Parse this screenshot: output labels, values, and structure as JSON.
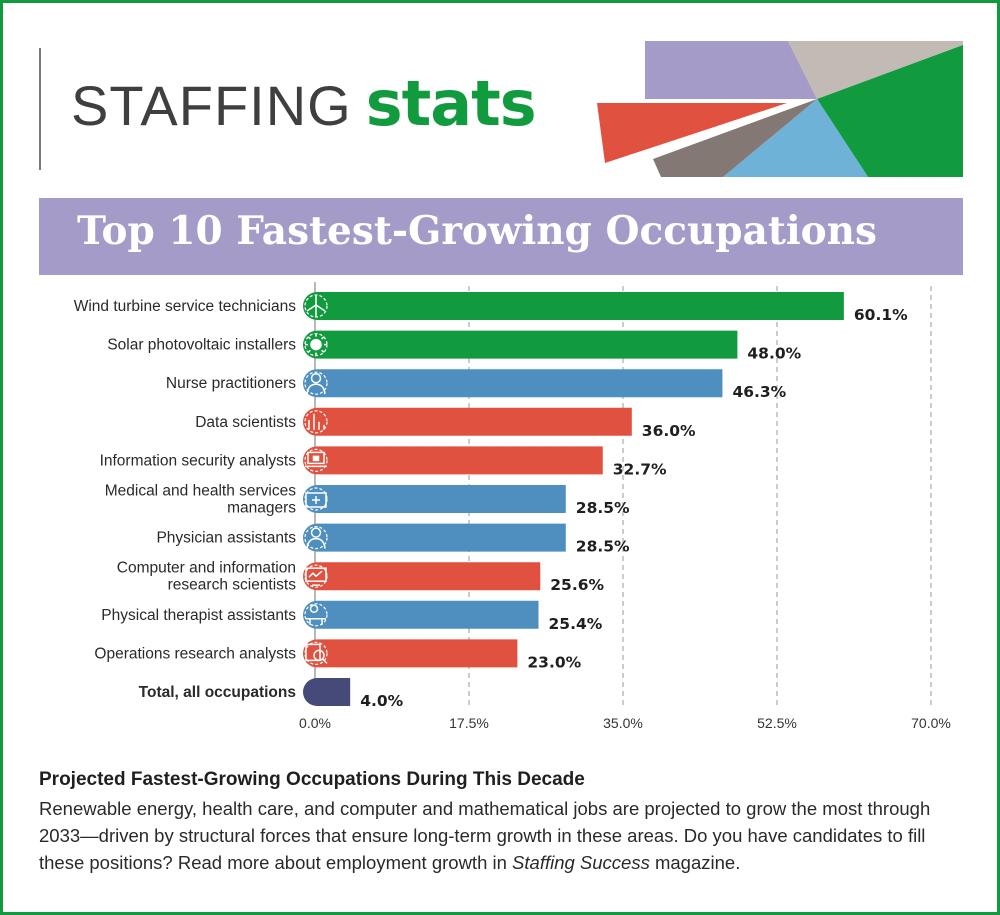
{
  "brand": {
    "light": "STAFFING",
    "bold": "stats"
  },
  "colors": {
    "border": "#129a3f",
    "green": "#129a3f",
    "blue": "#4f8fbf",
    "red": "#e0513f",
    "navy": "#454a78",
    "purple": "#a49bc8"
  },
  "chart_data": {
    "type": "bar",
    "orientation": "horizontal",
    "title": "Top 10 Fastest-Growing Occupations",
    "xlim": [
      0,
      70
    ],
    "x_ticks": [
      "0.0%",
      "17.5%",
      "35.0%",
      "52.5%",
      "70.0%"
    ],
    "categories": [
      "Wind turbine service technicians",
      "Solar photovoltaic installers",
      "Nurse practitioners",
      "Data scientists",
      "Information security analysts",
      "Medical and health services managers",
      "Physician assistants",
      "Computer and information research scientists",
      "Physical therapist assistants",
      "Operations research analysts",
      "Total, all occupations"
    ],
    "values": [
      60.1,
      48.0,
      46.3,
      36.0,
      32.7,
      28.5,
      28.5,
      25.6,
      25.4,
      23.0,
      4.0
    ],
    "value_labels": [
      "60.1%",
      "48.0%",
      "46.3%",
      "36.0%",
      "32.7%",
      "28.5%",
      "28.5%",
      "25.6%",
      "25.4%",
      "23.0%",
      "4.0%"
    ],
    "bar_colors": [
      "green",
      "green",
      "blue",
      "red",
      "red",
      "blue",
      "blue",
      "red",
      "blue",
      "red",
      "navy"
    ],
    "icons": [
      "wind-turbine-icon",
      "sun-icon",
      "nurse-icon",
      "bar-chart-icon",
      "laptop-lock-icon",
      "medical-kit-icon",
      "doctor-icon",
      "monitor-chart-icon",
      "therapy-icon",
      "magnifier-chart-icon",
      ""
    ],
    "grid": "dashed vertical",
    "legend": "none"
  },
  "footer": {
    "title": "Projected Fastest-Growing Occupations During This Decade",
    "body_part1": "Renewable energy, health care, and computer and mathematical jobs are projected to grow the most through 2033—driven by structural forces that ensure long-term growth in these areas. Do you have candidates to fill these positions? Read more about employment growth in ",
    "body_italic": "Staffing Success",
    "body_part2": " magazine."
  }
}
